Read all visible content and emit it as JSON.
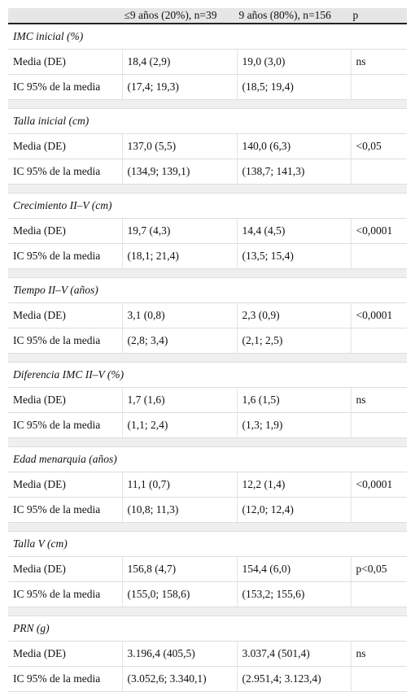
{
  "header": [
    "≤9 años (20%), n=39",
    "9 años (80%), n=156",
    "p"
  ],
  "sections": [
    {
      "title": "IMC inicial (%)",
      "rows": [
        [
          "Media (DE)",
          "18,4 (2,9)",
          "19,0 (3,0)",
          "ns"
        ],
        [
          "IC 95% de la media",
          "(17,4; 19,3)",
          "(18,5; 19,4)"
        ]
      ]
    },
    {
      "title": "Talla inicial (cm)",
      "rows": [
        [
          "Media (DE)",
          "137,0 (5,5)",
          "140,0 (6,3)",
          "<0,05"
        ],
        [
          "IC 95% de la media",
          "(134,9; 139,1)",
          "(138,7; 141,3)"
        ]
      ]
    },
    {
      "title": "Crecimiento II–V (cm)",
      "rows": [
        [
          "Media (DE)",
          "19,7 (4,3)",
          "14,4 (4,5)",
          "<0,0001"
        ],
        [
          "IC 95% de la media",
          "(18,1; 21,4)",
          "(13,5; 15,4)"
        ]
      ]
    },
    {
      "title": "Tiempo II–V (años)",
      "rows": [
        [
          "Media (DE)",
          "3,1 (0,8)",
          "2,3 (0,9)",
          "<0,0001"
        ],
        [
          "IC 95% de la media",
          "(2,8; 3,4)",
          "(2,1; 2,5)"
        ]
      ]
    },
    {
      "title": "Diferencia IMC II–V (%)",
      "rows": [
        [
          "Media (DE)",
          "1,7 (1,6)",
          "1,6 (1,5)",
          "ns"
        ],
        [
          "IC 95% de la media",
          "(1,1; 2,4)",
          "(1,3; 1,9)"
        ]
      ]
    },
    {
      "title": "Edad menarquia (años)",
      "rows": [
        [
          "Media (DE)",
          "11,1 (0,7)",
          "12,2 (1,4)",
          "<0,0001"
        ],
        [
          "IC 95% de la media",
          "(10,8; 11,3)",
          "(12,0; 12,4)"
        ]
      ]
    },
    {
      "title": "Talla V (cm)",
      "rows": [
        [
          "Media (DE)",
          "156,8 (4,7)",
          "154,4 (6,0)",
          "p<0,05"
        ],
        [
          "IC 95% de la media",
          "(155,0; 158,6)",
          "(153,2; 155,6)"
        ]
      ]
    },
    {
      "title": "PRN (g)",
      "rows": [
        [
          "Media (DE)",
          "3.196,4 (405,5)",
          "3.037,4 (501,4)",
          "ns"
        ],
        [
          "IC 95% de la media",
          "(3.052,6; 3.340,1)",
          "(2.951,4; 3.123,4)"
        ]
      ]
    }
  ]
}
